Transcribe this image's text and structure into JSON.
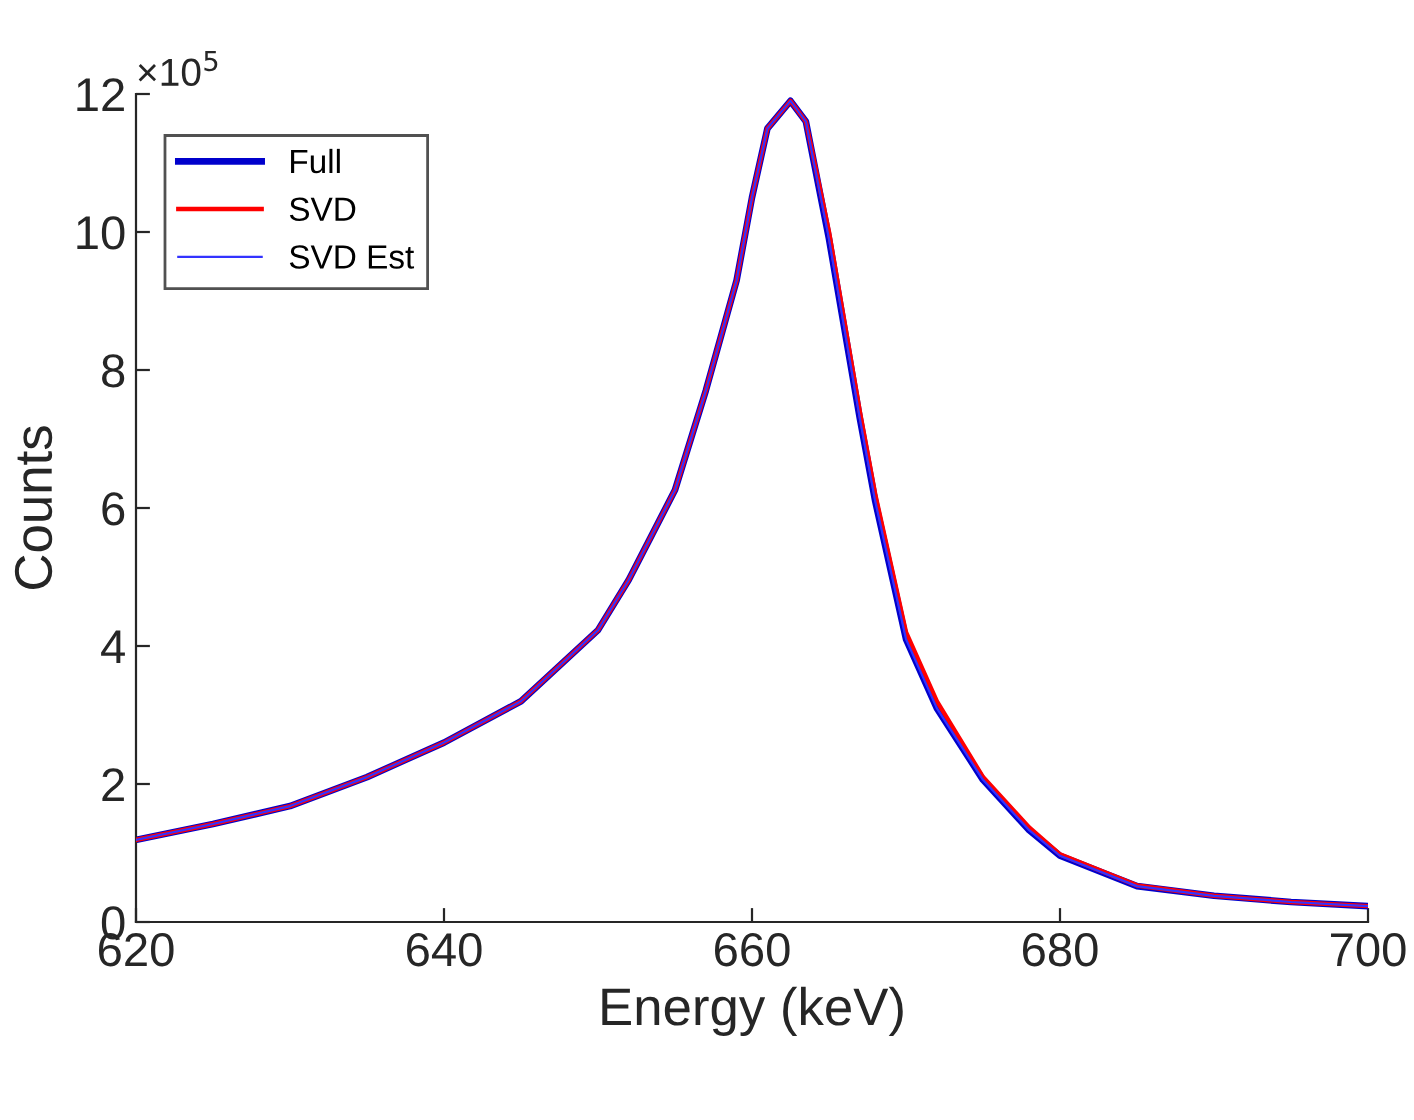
{
  "chart_data": {
    "type": "line",
    "xlabel": "Energy (keV)",
    "ylabel": "Counts",
    "annotations": [
      "×10$^{5}$"
    ],
    "x": [
      620,
      625,
      630,
      635,
      640,
      645,
      650,
      652,
      655,
      657,
      659,
      660,
      661,
      662.5,
      663.5,
      665,
      666,
      667,
      668,
      670,
      672,
      675,
      678,
      680,
      685,
      690,
      695,
      700
    ],
    "series": [
      {
        "name": "Full",
        "color": "#0000cc",
        "values": [
          1.19,
          1.42,
          1.68,
          2.1,
          2.6,
          3.2,
          4.23,
          4.96,
          6.26,
          7.7,
          9.3,
          10.5,
          11.5,
          11.9,
          11.6,
          9.9,
          8.6,
          7.3,
          6.1,
          4.1,
          3.1,
          2.06,
          1.33,
          0.96,
          0.52,
          0.38,
          0.29,
          0.23
        ]
      },
      {
        "name": "SVD",
        "color": "#ff0000",
        "values": [
          1.19,
          1.42,
          1.68,
          2.1,
          2.6,
          3.2,
          4.23,
          4.96,
          6.26,
          7.7,
          9.3,
          10.5,
          11.5,
          11.9,
          11.6,
          10.0,
          8.7,
          7.4,
          6.2,
          4.2,
          3.2,
          2.1,
          1.37,
          0.98,
          0.53,
          0.38,
          0.29,
          0.23
        ]
      },
      {
        "name": "SVD Est",
        "color": "#3333ff",
        "values": [
          1.19,
          1.42,
          1.68,
          2.1,
          2.6,
          3.2,
          4.23,
          4.96,
          6.26,
          7.7,
          9.3,
          10.5,
          11.5,
          11.9,
          11.6,
          9.9,
          8.6,
          7.3,
          6.1,
          4.1,
          3.1,
          2.06,
          1.33,
          0.96,
          0.52,
          0.38,
          0.29,
          0.23
        ]
      }
    ],
    "xlim": [
      620,
      700
    ],
    "xticks": [
      620,
      640,
      660,
      680,
      700
    ],
    "ylim": [
      0,
      12
    ],
    "yticks": [
      0,
      2,
      4,
      6,
      8,
      10,
      12
    ],
    "legend": "top left",
    "grid": false
  }
}
